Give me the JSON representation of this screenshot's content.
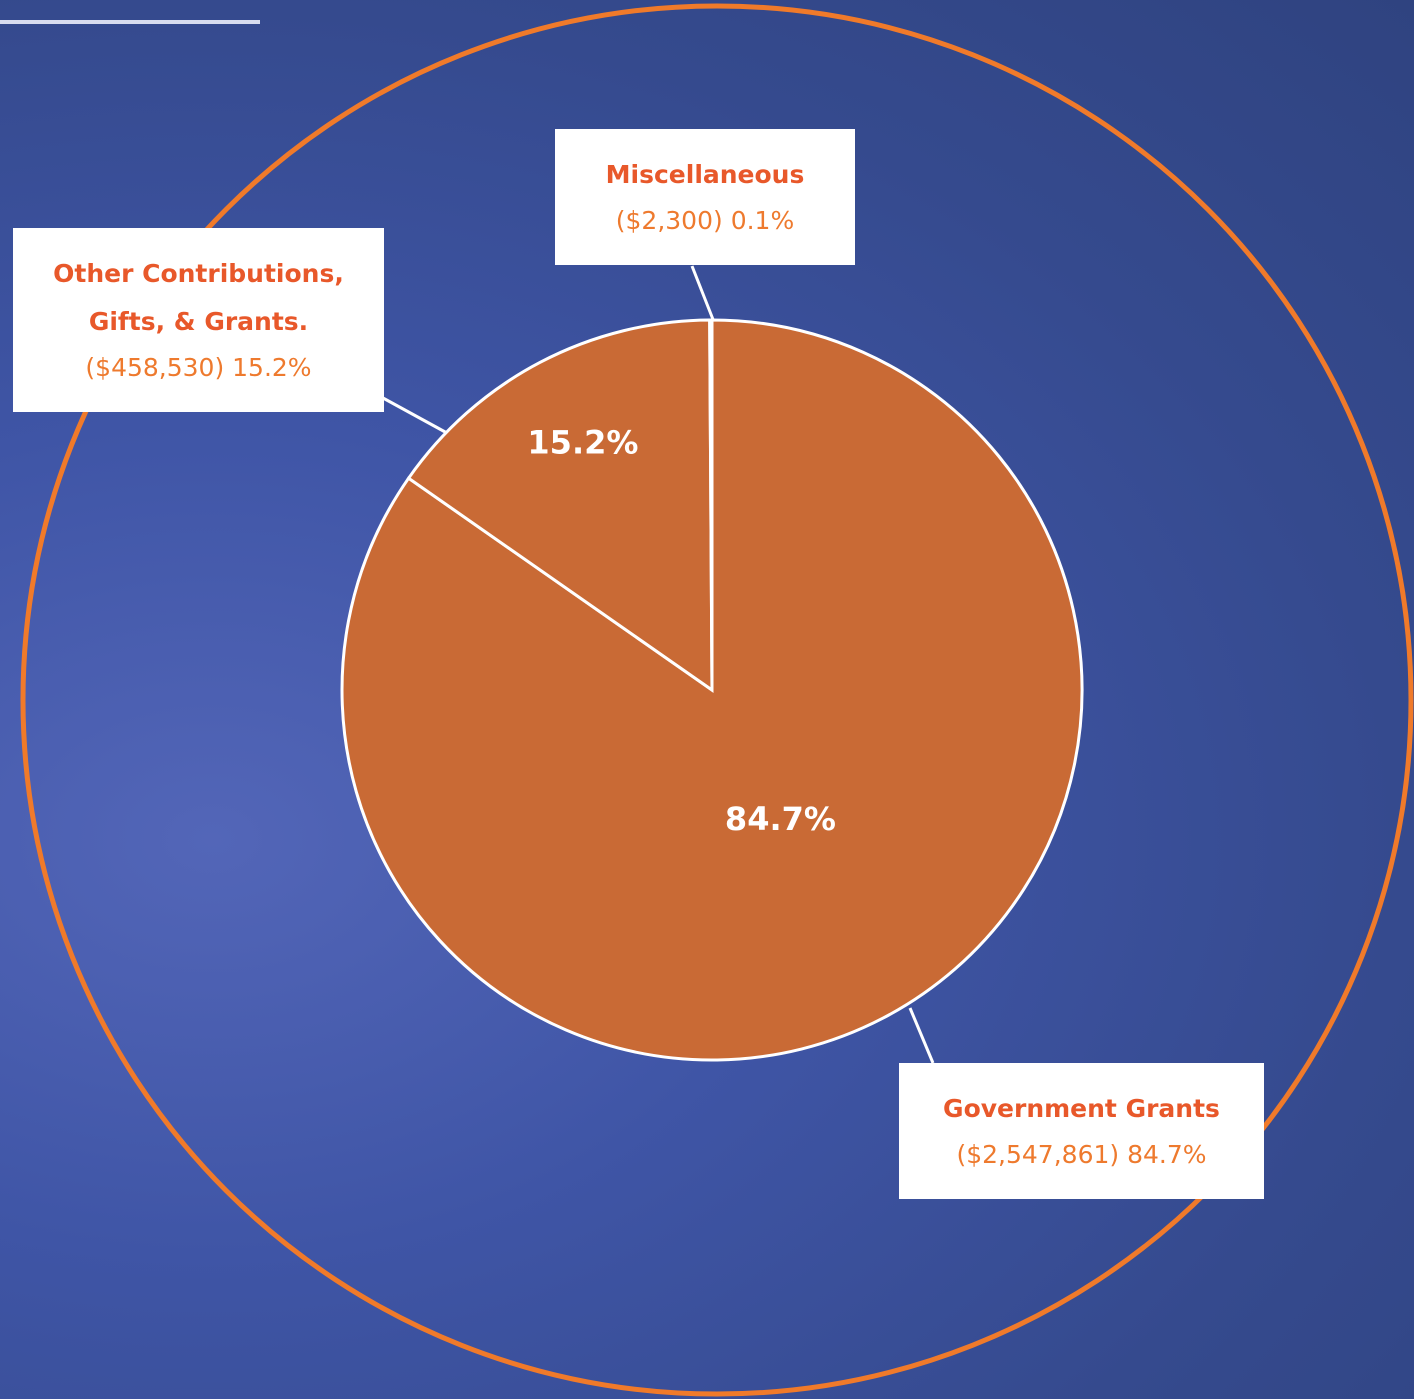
{
  "chart_data": {
    "type": "pie",
    "categories": [
      "Government Grants",
      "Other Contributions, Gifts, & Grants.",
      "Miscellaneous"
    ],
    "values": [
      84.7,
      15.2,
      0.1
    ],
    "value_labels": [
      "84.7%",
      "15.2%",
      null
    ],
    "callout_labels": [
      "($2,547,861) 84.7%",
      "($458,530) 15.2%",
      "($2,300) 0.1%"
    ],
    "color": "#c96a35"
  }
}
